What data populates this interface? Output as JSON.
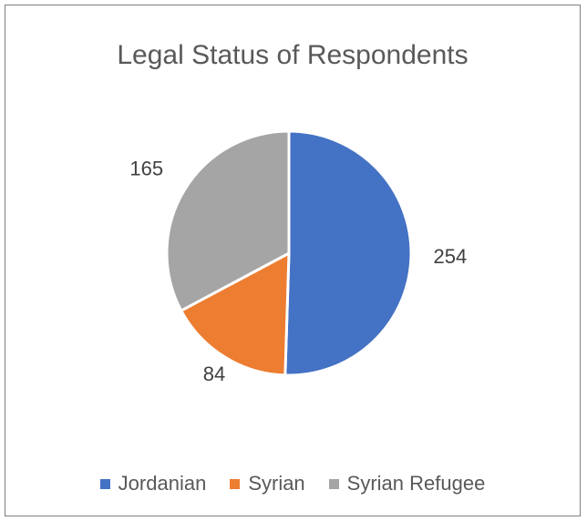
{
  "chart_data": {
    "type": "pie",
    "title": "Legal Status of Respondents",
    "categories": [
      "Jordanian",
      "Syrian",
      "Syrian Refugee"
    ],
    "values": [
      254,
      84,
      165
    ],
    "colors": [
      "#4472c4",
      "#ed7d31",
      "#a5a5a5"
    ],
    "data_labels": [
      "254",
      "84",
      "165"
    ],
    "legend_position": "bottom"
  }
}
